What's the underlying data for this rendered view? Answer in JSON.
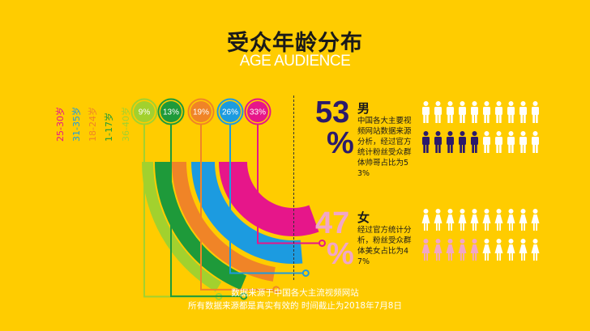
{
  "title": "受众年龄分布",
  "subtitle": "AGE AUDIENCE",
  "chart_data": {
    "type": "pie",
    "categories": [
      "36-40岁",
      "1-17岁",
      "18-24岁",
      "31-35岁",
      "25-30岁"
    ],
    "values": [
      9,
      13,
      19,
      26,
      33
    ],
    "value_labels": [
      "9%",
      "13%",
      "19%",
      "26%",
      "33%"
    ]
  },
  "colors": {
    "background": "#FFCC00",
    "age_36_40": "#A2D12E",
    "age_1_17": "#1E9A3A",
    "age_18_24": "#F08427",
    "age_31_35": "#1C9BE0",
    "age_25_30": "#E6168A",
    "male": "#2B1A6B",
    "female": "#F2A6C6"
  },
  "male": {
    "percent": "53",
    "percent_sign": "%",
    "label": "男",
    "description": "中国各大主要视频网站数据来源分析，经过官方统计粉丝受众群体帅哥占比为53%",
    "icon": "male-person-icon"
  },
  "female": {
    "percent": "47",
    "percent_sign": "%",
    "label": "女",
    "description": "经过官方统计分析，粉丝受众群体美女占比为47%",
    "icon": "female-person-icon"
  },
  "footer": {
    "line1": "数据来源于中国各大主流视频网站",
    "line2": "所有数据来源都是真实有效的 时间截止为2018年7月8日"
  }
}
